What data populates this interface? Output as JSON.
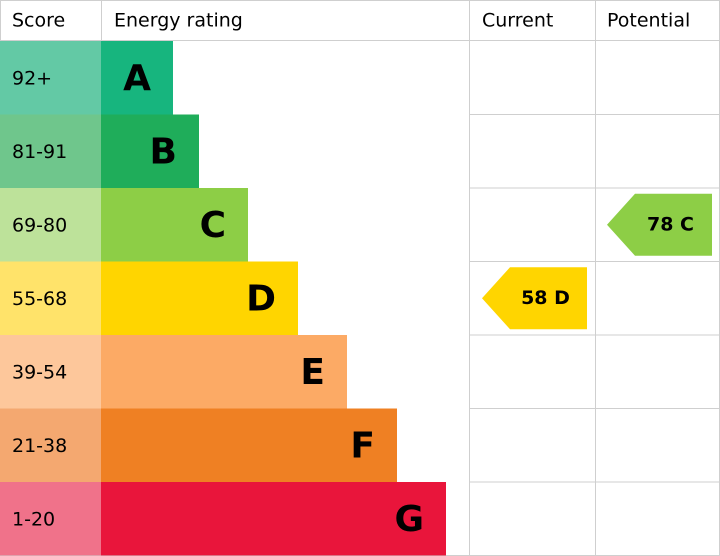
{
  "header": {
    "score": "Score",
    "rating": "Energy rating",
    "current": "Current",
    "potential": "Potential"
  },
  "bands": [
    {
      "score": "92+",
      "letter": "A"
    },
    {
      "score": "81-91",
      "letter": "B"
    },
    {
      "score": "69-80",
      "letter": "C"
    },
    {
      "score": "55-68",
      "letter": "D"
    },
    {
      "score": "39-54",
      "letter": "E"
    },
    {
      "score": "21-38",
      "letter": "F"
    },
    {
      "score": "1-20",
      "letter": "G"
    }
  ],
  "current": "58 D",
  "potential": "78 C"
}
